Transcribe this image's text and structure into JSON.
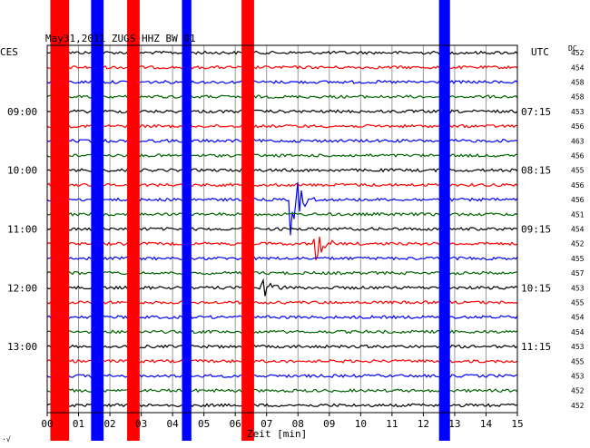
{
  "chart_data": {
    "type": "line",
    "title": "May31,2011  ZUGS HHZ BW 01",
    "left_axis_label": "CES",
    "right_axis_label": "UTC",
    "right_column_label": "DC",
    "xlabel": "Zeit [min]",
    "xlim": [
      0,
      15
    ],
    "x_ticks": [
      "00",
      "01",
      "02",
      "03",
      "04",
      "05",
      "06",
      "07",
      "08",
      "09",
      "10",
      "11",
      "12",
      "13",
      "14",
      "15"
    ],
    "left_time_labels": [
      "09:00",
      "10:00",
      "11:00",
      "12:00",
      "13:00"
    ],
    "right_time_labels": [
      "07:15",
      "08:15",
      "09:15",
      "10:15",
      "11:15"
    ],
    "time_label_rows": [
      4,
      8,
      12,
      16,
      20
    ],
    "trace_colors": [
      "#000000",
      "#ff0000",
      "#0000ff",
      "#006400"
    ],
    "dc_values": [
      452,
      454,
      458,
      458,
      453,
      456,
      463,
      456,
      455,
      456,
      456,
      451,
      454,
      452,
      455,
      457,
      453,
      455,
      454,
      454,
      453,
      455,
      453,
      452,
      452
    ],
    "bands": [
      {
        "color": "#ff0000",
        "start_min": 0.1,
        "end_min": 0.7
      },
      {
        "color": "#0000ff",
        "start_min": 1.4,
        "end_min": 1.8
      },
      {
        "color": "#ff0000",
        "start_min": 2.55,
        "end_min": 2.95
      },
      {
        "color": "#0000ff",
        "start_min": 4.3,
        "end_min": 4.6
      },
      {
        "color": "#ff0000",
        "start_min": 6.2,
        "end_min": 6.6
      },
      {
        "color": "#0000ff",
        "start_min": 12.5,
        "end_min": 12.85
      }
    ],
    "events": [
      {
        "row": 10,
        "minute": 7.8,
        "amplitude": 2.6
      },
      {
        "row": 13,
        "minute": 8.6,
        "amplitude": 1.2
      },
      {
        "row": 16,
        "minute": 6.9,
        "amplitude": 0.9
      }
    ],
    "grid": true,
    "footer_mark": "·√"
  }
}
